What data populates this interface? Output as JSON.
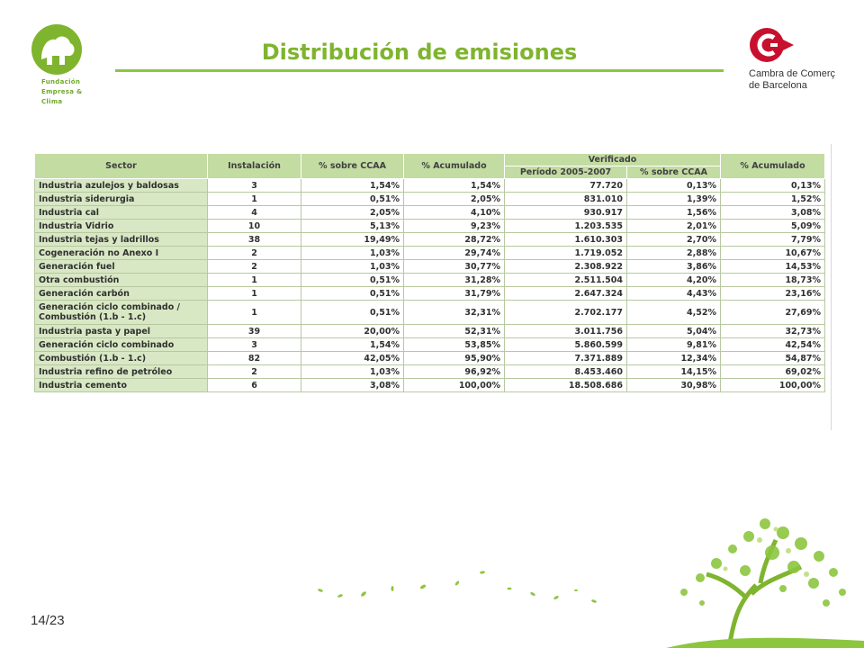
{
  "header": {
    "title": "Distribución de emisiones",
    "left_logo": {
      "lines": [
        "Fundación",
        "Empresa &",
        "Clima"
      ]
    },
    "right_logo": {
      "lines": [
        "Cambra de Comerç",
        "de Barcelona"
      ]
    }
  },
  "table": {
    "headers": {
      "sector": "Sector",
      "instalacion": "Instalación",
      "pct_ccaa": "% sobre CCAA",
      "pct_acum": "% Acumulado",
      "verificado": "Verificado",
      "periodo": "Período 2005-2007",
      "ver_pct_ccaa": "% sobre CCAA",
      "ver_pct_acum": "% Acumulado"
    },
    "rows": [
      [
        "Industria azulejos y baldosas",
        "3",
        "1,54%",
        "1,54%",
        "77.720",
        "0,13%",
        "0,13%"
      ],
      [
        "Industria siderurgia",
        "1",
        "0,51%",
        "2,05%",
        "831.010",
        "1,39%",
        "1,52%"
      ],
      [
        "Industria cal",
        "4",
        "2,05%",
        "4,10%",
        "930.917",
        "1,56%",
        "3,08%"
      ],
      [
        "Industria Vidrio",
        "10",
        "5,13%",
        "9,23%",
        "1.203.535",
        "2,01%",
        "5,09%"
      ],
      [
        "Industria tejas y ladrillos",
        "38",
        "19,49%",
        "28,72%",
        "1.610.303",
        "2,70%",
        "7,79%"
      ],
      [
        "Cogeneración no Anexo I",
        "2",
        "1,03%",
        "29,74%",
        "1.719.052",
        "2,88%",
        "10,67%"
      ],
      [
        "Generación fuel",
        "2",
        "1,03%",
        "30,77%",
        "2.308.922",
        "3,86%",
        "14,53%"
      ],
      [
        "Otra combustión",
        "1",
        "0,51%",
        "31,28%",
        "2.511.504",
        "4,20%",
        "18,73%"
      ],
      [
        "Generación carbón",
        "1",
        "0,51%",
        "31,79%",
        "2.647.324",
        "4,43%",
        "23,16%"
      ],
      [
        "Generación ciclo combinado / Combustión (1.b - 1.c)",
        "1",
        "0,51%",
        "32,31%",
        "2.702.177",
        "4,52%",
        "27,69%"
      ],
      [
        "Industria pasta y papel",
        "39",
        "20,00%",
        "52,31%",
        "3.011.756",
        "5,04%",
        "32,73%"
      ],
      [
        "Generación ciclo combinado",
        "3",
        "1,54%",
        "53,85%",
        "5.860.599",
        "9,81%",
        "42,54%"
      ],
      [
        "Combustión (1.b - 1.c)",
        "82",
        "42,05%",
        "95,90%",
        "7.371.889",
        "12,34%",
        "54,87%"
      ],
      [
        "Industria refino de petróleo",
        "2",
        "1,03%",
        "96,92%",
        "8.453.460",
        "14,15%",
        "69,02%"
      ],
      [
        "Industria cemento",
        "6",
        "3,08%",
        "100,00%",
        "18.508.686",
        "30,98%",
        "100,00%"
      ]
    ]
  },
  "footer": {
    "page": "14/23"
  },
  "colors": {
    "green_title": "#7fb42f",
    "header_fill": "#c3dca2",
    "sector_fill": "#d8e8c4",
    "cambra_red": "#c8102e"
  }
}
